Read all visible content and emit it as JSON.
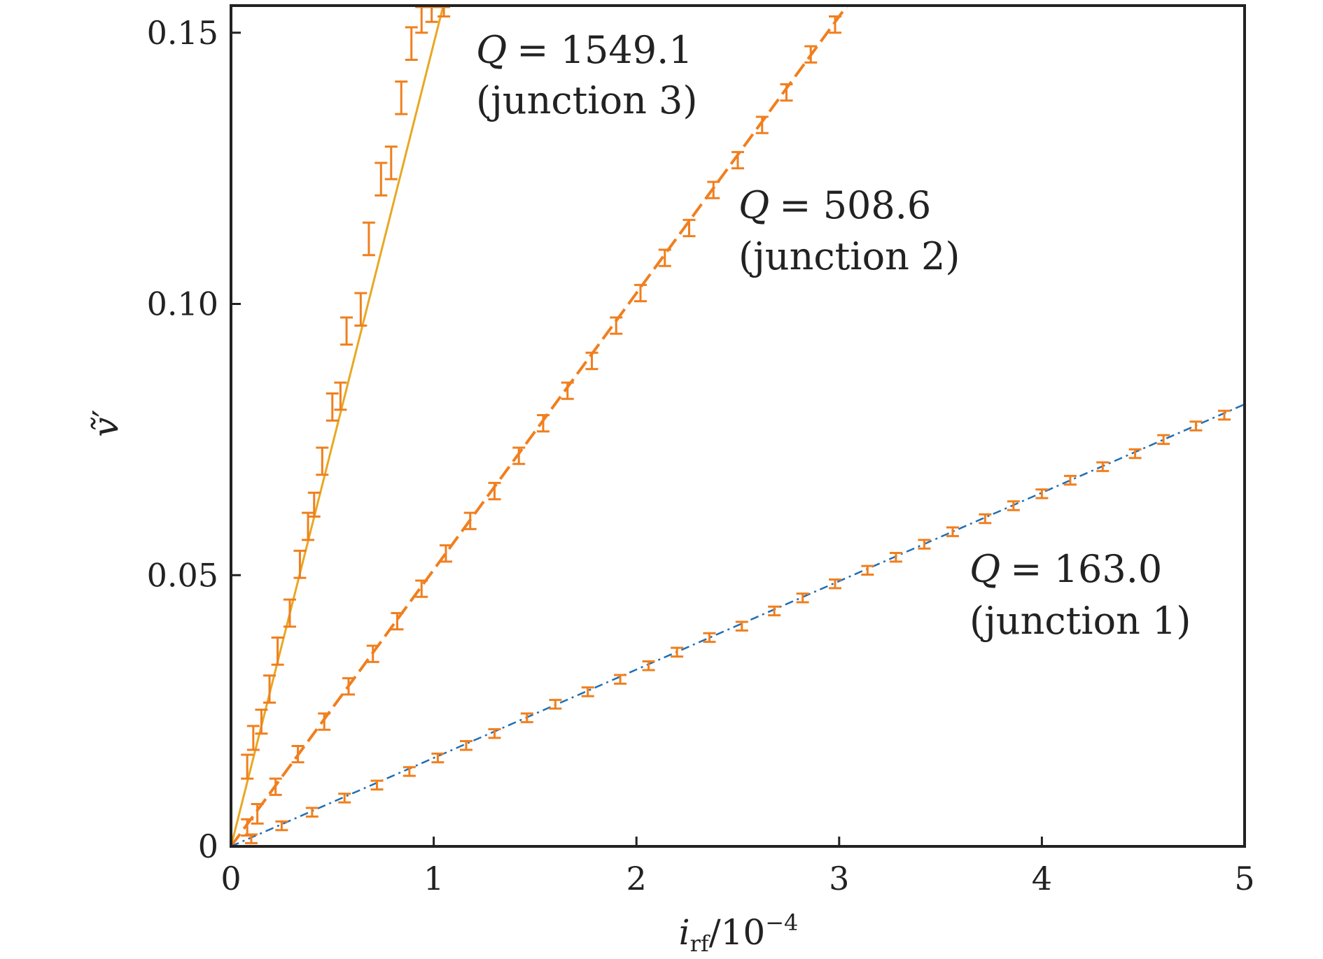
{
  "chart_data": {
    "type": "line",
    "xlabel": {
      "main": "i",
      "sub": "rf",
      "rest": "/10",
      "sup": "−4"
    },
    "ylabel": {
      "main": "ṽ",
      "sup": "′"
    },
    "xlim": [
      0,
      5
    ],
    "ylim": [
      0,
      0.155
    ],
    "x_ticks": [
      0,
      1,
      2,
      3,
      4,
      5
    ],
    "x_tick_labels": [
      "0",
      "1",
      "2",
      "3",
      "4",
      "5"
    ],
    "y_ticks": [
      0,
      0.05,
      0.1,
      0.15
    ],
    "y_tick_labels": [
      "0",
      "0.05",
      "0.10",
      "0.15"
    ],
    "grid": false,
    "legend": "none",
    "errorbar_color": "#f07f1e",
    "series": [
      {
        "annotation": {
          "q": "Q",
          "value": "= 1549.1",
          "junction": "(junction 3)"
        },
        "slope": 1480,
        "line_color": "#e8a823",
        "line_style": "solid",
        "x": [
          0.08,
          0.11,
          0.15,
          0.19,
          0.23,
          0.29,
          0.34,
          0.38,
          0.41,
          0.45,
          0.5,
          0.54,
          0.57,
          0.64,
          0.68,
          0.74,
          0.79,
          0.84,
          0.89,
          0.94,
          0.99,
          1.05
        ],
        "y": [
          0.0147,
          0.02,
          0.023,
          0.029,
          0.036,
          0.043,
          0.052,
          0.059,
          0.063,
          0.071,
          0.081,
          0.083,
          0.095,
          0.099,
          0.112,
          0.123,
          0.126,
          0.138,
          0.148,
          0.153,
          0.155,
          0.156
        ],
        "err": [
          0.0022,
          0.0022,
          0.0022,
          0.0025,
          0.0025,
          0.0025,
          0.0025,
          0.0025,
          0.0022,
          0.0025,
          0.0025,
          0.0025,
          0.0025,
          0.003,
          0.003,
          0.003,
          0.003,
          0.003,
          0.003,
          0.003,
          0.003,
          0.003
        ]
      },
      {
        "annotation": {
          "q": "Q",
          "value": "= 508.6",
          "junction": "(junction 2)"
        },
        "slope": 510,
        "line_color": "#f07f1e",
        "line_style": "dashed",
        "x": [
          0.08,
          0.13,
          0.22,
          0.33,
          0.46,
          0.58,
          0.7,
          0.82,
          0.94,
          1.06,
          1.18,
          1.3,
          1.42,
          1.54,
          1.66,
          1.78,
          1.9,
          2.02,
          2.14,
          2.26,
          2.38,
          2.5,
          2.62,
          2.74,
          2.86,
          2.98
        ],
        "y": [
          0.0035,
          0.006,
          0.011,
          0.017,
          0.023,
          0.0295,
          0.0355,
          0.0415,
          0.0475,
          0.054,
          0.06,
          0.0655,
          0.072,
          0.078,
          0.084,
          0.0895,
          0.096,
          0.102,
          0.1085,
          0.114,
          0.121,
          0.1265,
          0.133,
          0.139,
          0.146,
          0.1515
        ],
        "err": [
          0.0015,
          0.0018,
          0.0015,
          0.0015,
          0.0015,
          0.0015,
          0.0015,
          0.0015,
          0.0015,
          0.0015,
          0.0015,
          0.0015,
          0.0015,
          0.0015,
          0.0015,
          0.0015,
          0.0015,
          0.0015,
          0.0015,
          0.0015,
          0.0015,
          0.0015,
          0.0015,
          0.0015,
          0.0015,
          0.0015
        ]
      },
      {
        "annotation": {
          "q": "Q",
          "value": "= 163.0",
          "junction": "(junction 1)"
        },
        "slope": 163,
        "line_color": "#1f6fb5",
        "line_style": "dashdot",
        "x": [
          0.1,
          0.25,
          0.4,
          0.56,
          0.72,
          0.88,
          1.02,
          1.16,
          1.3,
          1.46,
          1.6,
          1.76,
          1.92,
          2.06,
          2.2,
          2.36,
          2.52,
          2.68,
          2.82,
          2.98,
          3.14,
          3.28,
          3.42,
          3.56,
          3.72,
          3.86,
          4.0,
          4.14,
          4.3,
          4.46,
          4.6,
          4.76,
          4.9
        ],
        "y": [
          0.0014,
          0.0038,
          0.0063,
          0.0089,
          0.0113,
          0.0138,
          0.0163,
          0.0186,
          0.0208,
          0.0237,
          0.0262,
          0.0285,
          0.0308,
          0.0333,
          0.0358,
          0.0385,
          0.0406,
          0.0434,
          0.0458,
          0.0484,
          0.0509,
          0.0533,
          0.0557,
          0.058,
          0.0604,
          0.0628,
          0.065,
          0.0675,
          0.07,
          0.0724,
          0.075,
          0.0775,
          0.0795
        ],
        "err": [
          0.0008,
          0.0008,
          0.0008,
          0.0008,
          0.0008,
          0.0008,
          0.0008,
          0.0008,
          0.0008,
          0.0008,
          0.0008,
          0.0008,
          0.0008,
          0.0008,
          0.0008,
          0.0008,
          0.0008,
          0.0008,
          0.0008,
          0.0008,
          0.0008,
          0.0008,
          0.0008,
          0.0008,
          0.0008,
          0.0008,
          0.0008,
          0.0008,
          0.0008,
          0.0008,
          0.0008,
          0.0008,
          0.0008
        ]
      }
    ]
  }
}
